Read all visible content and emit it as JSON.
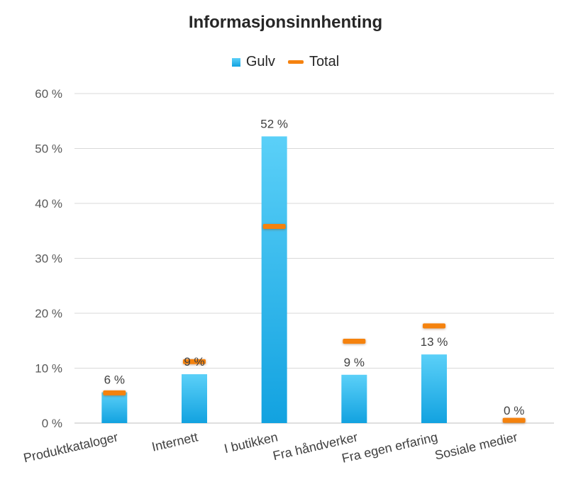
{
  "chart_data": {
    "type": "bar",
    "title": "Informasjonsinnhenting",
    "categories": [
      "Produktkataloger",
      "Internett",
      "I butikken",
      "Fra håndverker",
      "Fra egen erfaring",
      "Sosiale medier"
    ],
    "series": [
      {
        "name": "Gulv",
        "kind": "bar",
        "values": [
          5.6,
          8.9,
          52.2,
          8.8,
          12.5,
          0
        ],
        "labels": [
          "6 %",
          "9 %",
          "52 %",
          "9 %",
          "13 %",
          "0 %"
        ],
        "color": "#21B1EC"
      },
      {
        "name": "Total",
        "kind": "marker",
        "values": [
          5.5,
          11.2,
          35.8,
          14.9,
          17.7,
          0.5
        ],
        "color": "#F5820F"
      }
    ],
    "y_ticks": [
      "0 %",
      "10 %",
      "20 %",
      "30 %",
      "40 %",
      "50 %",
      "60 %"
    ],
    "ylim": [
      0,
      60
    ],
    "grid": true,
    "legend_position": "top"
  }
}
